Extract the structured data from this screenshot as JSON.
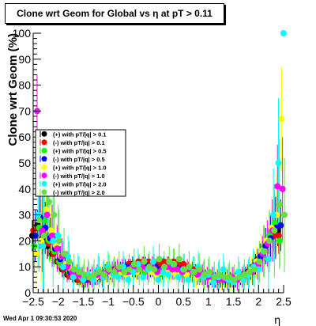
{
  "header": {
    "title": "Clone wrt Geom for Global vs   η at pT > 0.11"
  },
  "footer": {
    "timestamp": "Wed Apr  1 09:30:53 2020"
  },
  "chart_data": {
    "type": "scatter",
    "title": "Clone wrt Geom for Global vs   η at pT > 0.11",
    "xlabel": "η",
    "ylabel": "Clone wrt Geom (%)",
    "xlim": [
      -2.5,
      2.5
    ],
    "ylim": [
      0,
      100
    ],
    "x_ticks": [
      "−2.5",
      "−2",
      "−1.5",
      "−1",
      "−0.5",
      "0",
      "0.5",
      "1",
      "1.5",
      "2",
      "2.5"
    ],
    "y_ticks": [
      "0",
      "10",
      "20",
      "30",
      "40",
      "50",
      "60",
      "70",
      "80",
      "90",
      "100"
    ],
    "grid": false,
    "legend_position": "left-middle",
    "series": [
      {
        "name": "(+) with pT/|q| > 0.1",
        "color": "#000000",
        "x": [
          -2.45,
          -2.35,
          -2.25,
          -2.15,
          -2.05,
          -1.95,
          -1.85,
          -1.75,
          -1.65,
          -1.55,
          -1.45,
          -1.35,
          -1.25,
          -1.15,
          -1.05,
          -0.95,
          -0.85,
          -0.75,
          -0.65,
          -0.55,
          -0.45,
          -0.35,
          -0.25,
          -0.15,
          -0.05,
          0.05,
          0.15,
          0.25,
          0.35,
          0.45,
          0.55,
          0.65,
          0.75,
          0.85,
          0.95,
          1.05,
          1.15,
          1.25,
          1.35,
          1.45,
          1.55,
          1.65,
          1.75,
          1.85,
          1.95,
          2.05,
          2.15,
          2.25,
          2.35,
          2.45
        ],
        "y": [
          22,
          26,
          21,
          18,
          15,
          12,
          9,
          7,
          6,
          5,
          5,
          5,
          6,
          6,
          7,
          8,
          8,
          9,
          10,
          10,
          11,
          11,
          11,
          11,
          10,
          10,
          11,
          11,
          11,
          10,
          10,
          9,
          8,
          8,
          7,
          6,
          6,
          5,
          5,
          5,
          5,
          6,
          7,
          8,
          10,
          13,
          16,
          20,
          23,
          24
        ],
        "err": [
          6,
          6,
          6,
          5,
          4,
          3,
          3,
          2,
          2,
          2,
          2,
          2,
          2,
          2,
          2,
          2,
          2,
          2,
          2,
          2,
          2,
          2,
          2,
          2,
          2,
          2,
          2,
          2,
          2,
          2,
          2,
          2,
          2,
          2,
          2,
          2,
          2,
          2,
          2,
          2,
          2,
          2,
          2,
          2,
          3,
          3,
          4,
          5,
          6,
          6
        ]
      },
      {
        "name": "(-) with pT/|q| > 0.1",
        "color": "#ff0000",
        "x": [
          -2.45,
          -2.35,
          -2.25,
          -2.15,
          -2.05,
          -1.95,
          -1.85,
          -1.75,
          -1.65,
          -1.55,
          -1.45,
          -1.35,
          -1.25,
          -1.15,
          -1.05,
          -0.95,
          -0.85,
          -0.75,
          -0.65,
          -0.55,
          -0.45,
          -0.35,
          -0.25,
          -0.15,
          -0.05,
          0.05,
          0.15,
          0.25,
          0.35,
          0.45,
          0.55,
          0.65,
          0.75,
          0.85,
          0.95,
          1.05,
          1.15,
          1.25,
          1.35,
          1.45,
          1.55,
          1.65,
          1.75,
          1.85,
          1.95,
          2.05,
          2.15,
          2.25,
          2.35,
          2.45
        ],
        "y": [
          24,
          25,
          22,
          19,
          15,
          12,
          9,
          7,
          6,
          5,
          5,
          5,
          6,
          7,
          7,
          8,
          9,
          9,
          10,
          11,
          11,
          12,
          12,
          12,
          12,
          11,
          12,
          12,
          12,
          11,
          11,
          10,
          9,
          8,
          7,
          6,
          6,
          5,
          5,
          5,
          5,
          6,
          7,
          8,
          10,
          13,
          16,
          20,
          22,
          22
        ],
        "err": [
          7,
          6,
          6,
          5,
          4,
          3,
          3,
          2,
          2,
          2,
          2,
          2,
          2,
          2,
          2,
          2,
          2,
          2,
          2,
          2,
          2,
          2,
          2,
          2,
          2,
          2,
          2,
          2,
          2,
          2,
          2,
          2,
          2,
          2,
          2,
          2,
          2,
          2,
          2,
          2,
          2,
          2,
          2,
          2,
          3,
          3,
          4,
          5,
          6,
          7
        ]
      },
      {
        "name": "(+) with pT/|q| > 0.5",
        "color": "#00ff00",
        "x": [
          -2.45,
          -2.35,
          -2.25,
          -2.15,
          -2.05,
          -1.95,
          -1.85,
          -1.75,
          -1.65,
          -1.55,
          -1.45,
          -1.35,
          -1.25,
          -1.15,
          -1.05,
          -0.95,
          -0.85,
          -0.75,
          -0.65,
          -0.55,
          -0.45,
          -0.35,
          -0.25,
          -0.15,
          -0.05,
          0.05,
          0.15,
          0.25,
          0.35,
          0.45,
          0.55,
          0.65,
          0.75,
          0.85,
          0.95,
          1.05,
          1.15,
          1.25,
          1.35,
          1.45,
          1.55,
          1.65,
          1.75,
          1.85,
          1.95,
          2.05,
          2.15,
          2.25,
          2.35,
          2.45
        ],
        "y": [
          18,
          25,
          28,
          20,
          16,
          12,
          10,
          8,
          7,
          6,
          5,
          6,
          6,
          7,
          8,
          9,
          8,
          7,
          8,
          9,
          9,
          10,
          8,
          9,
          8,
          7,
          9,
          8,
          8,
          7,
          7,
          8,
          7,
          6,
          6,
          6,
          5,
          6,
          5,
          5,
          5,
          6,
          6,
          8,
          10,
          14,
          18,
          22,
          27,
          20
        ],
        "err": [
          10,
          12,
          10,
          8,
          6,
          5,
          4,
          3,
          3,
          3,
          3,
          3,
          3,
          3,
          3,
          3,
          3,
          3,
          3,
          3,
          3,
          3,
          3,
          3,
          3,
          3,
          3,
          3,
          3,
          3,
          3,
          3,
          3,
          3,
          3,
          3,
          3,
          3,
          3,
          3,
          3,
          3,
          3,
          3,
          4,
          5,
          7,
          9,
          12,
          10
        ]
      },
      {
        "name": "(-) with pT/|q| > 0.5",
        "color": "#0000ff",
        "x": [
          -2.45,
          -2.35,
          -2.25,
          -2.15,
          -2.05,
          -1.95,
          -1.85,
          -1.75,
          -1.65,
          -1.55,
          -1.45,
          -1.35,
          -1.25,
          -1.15,
          -1.05,
          -0.95,
          -0.85,
          -0.75,
          -0.65,
          -0.55,
          -0.45,
          -0.35,
          -0.25,
          -0.15,
          -0.05,
          0.05,
          0.15,
          0.25,
          0.35,
          0.45,
          0.55,
          0.65,
          0.75,
          0.85,
          0.95,
          1.05,
          1.15,
          1.25,
          1.35,
          1.45,
          1.55,
          1.65,
          1.75,
          1.85,
          1.95,
          2.05,
          2.15,
          2.25,
          2.35,
          2.45
        ],
        "y": [
          22,
          29,
          25,
          21,
          17,
          13,
          10,
          8,
          7,
          6,
          5,
          6,
          6,
          7,
          8,
          8,
          9,
          9,
          10,
          10,
          9,
          10,
          11,
          9,
          10,
          9,
          10,
          9,
          10,
          9,
          9,
          8,
          8,
          7,
          6,
          6,
          5,
          5,
          5,
          5,
          5,
          6,
          7,
          8,
          11,
          14,
          18,
          21,
          25,
          26
        ],
        "err": [
          10,
          12,
          10,
          8,
          6,
          5,
          4,
          3,
          3,
          3,
          3,
          3,
          3,
          3,
          3,
          3,
          3,
          3,
          3,
          3,
          3,
          3,
          3,
          3,
          3,
          3,
          3,
          3,
          3,
          3,
          3,
          3,
          3,
          3,
          3,
          3,
          3,
          3,
          3,
          3,
          3,
          3,
          3,
          3,
          4,
          5,
          7,
          9,
          12,
          10
        ]
      },
      {
        "name": "(+) with pT/|q| > 1.0",
        "color": "#ffff00",
        "x": [
          -2.45,
          -2.35,
          -2.25,
          -2.15,
          -2.05,
          -1.95,
          -1.85,
          -1.75,
          -1.65,
          -1.55,
          -1.45,
          -1.35,
          -1.25,
          -1.15,
          -1.05,
          -0.95,
          -0.85,
          -0.75,
          -0.65,
          -0.55,
          -0.45,
          -0.35,
          -0.25,
          -0.15,
          -0.05,
          0.05,
          0.15,
          0.25,
          0.35,
          0.45,
          0.55,
          0.65,
          0.75,
          0.85,
          0.95,
          1.05,
          1.15,
          1.25,
          1.35,
          1.45,
          1.55,
          1.65,
          1.75,
          1.85,
          1.95,
          2.05,
          2.15,
          2.25,
          2.35,
          2.45
        ],
        "y": [
          15,
          20,
          32,
          24,
          18,
          14,
          11,
          9,
          7,
          6,
          6,
          7,
          6,
          7,
          8,
          7,
          9,
          8,
          7,
          9,
          8,
          10,
          9,
          8,
          7,
          8,
          9,
          8,
          7,
          8,
          7,
          8,
          6,
          7,
          6,
          5,
          6,
          5,
          6,
          5,
          6,
          5,
          7,
          9,
          12,
          16,
          20,
          25,
          30,
          67
        ],
        "err": [
          14,
          16,
          14,
          12,
          9,
          7,
          6,
          4,
          4,
          4,
          4,
          4,
          4,
          4,
          4,
          4,
          4,
          4,
          4,
          4,
          4,
          4,
          4,
          4,
          4,
          4,
          4,
          4,
          4,
          4,
          4,
          4,
          4,
          4,
          4,
          4,
          4,
          4,
          4,
          4,
          4,
          4,
          4,
          5,
          6,
          7,
          9,
          12,
          16,
          20
        ]
      },
      {
        "name": "(-) with pT/|q| > 1.0",
        "color": "#ff00ff",
        "x": [
          -2.45,
          -2.35,
          -2.25,
          -2.15,
          -2.05,
          -1.95,
          -1.85,
          -1.75,
          -1.65,
          -1.55,
          -1.45,
          -1.35,
          -1.25,
          -1.15,
          -1.05,
          -0.95,
          -0.85,
          -0.75,
          -0.65,
          -0.55,
          -0.45,
          -0.35,
          -0.25,
          -0.15,
          -0.05,
          0.05,
          0.15,
          0.25,
          0.35,
          0.45,
          0.55,
          0.65,
          0.75,
          0.85,
          0.95,
          1.05,
          1.15,
          1.25,
          1.35,
          1.45,
          1.55,
          1.65,
          1.75,
          1.85,
          1.95,
          2.05,
          2.15,
          2.25,
          2.35,
          2.45
        ],
        "y": [
          70,
          24,
          30,
          22,
          17,
          14,
          10,
          8,
          7,
          6,
          6,
          6,
          7,
          6,
          8,
          8,
          9,
          9,
          8,
          10,
          9,
          10,
          9,
          10,
          8,
          9,
          10,
          9,
          9,
          8,
          9,
          8,
          7,
          7,
          6,
          6,
          5,
          5,
          5,
          6,
          5,
          6,
          7,
          8,
          11,
          15,
          19,
          24,
          41,
          40
        ],
        "err": [
          14,
          16,
          14,
          12,
          9,
          7,
          6,
          4,
          4,
          4,
          4,
          4,
          4,
          4,
          4,
          4,
          4,
          4,
          4,
          4,
          4,
          4,
          4,
          4,
          4,
          4,
          4,
          4,
          4,
          4,
          4,
          4,
          4,
          4,
          4,
          4,
          4,
          4,
          4,
          4,
          4,
          4,
          4,
          5,
          6,
          7,
          9,
          12,
          16,
          20
        ]
      },
      {
        "name": "(+) with pT/|q| > 2.0",
        "color": "#00ffff",
        "x": [
          -2.45,
          -2.35,
          -2.25,
          -2.15,
          -2.05,
          -1.95,
          -1.85,
          -1.75,
          -1.65,
          -1.55,
          -1.45,
          -1.35,
          -1.25,
          -1.15,
          -1.05,
          -0.95,
          -0.85,
          -0.75,
          -0.65,
          -0.55,
          -0.45,
          -0.35,
          -0.25,
          -0.15,
          -0.05,
          0.05,
          0.15,
          0.25,
          0.35,
          0.45,
          0.55,
          0.65,
          0.75,
          0.85,
          0.95,
          1.05,
          1.15,
          1.25,
          1.35,
          1.45,
          1.55,
          1.65,
          1.75,
          1.85,
          1.95,
          2.05,
          2.15,
          2.25,
          2.35,
          2.45
        ],
        "y": [
          30,
          18,
          40,
          20,
          22,
          10,
          14,
          6,
          9,
          5,
          7,
          5,
          9,
          6,
          10,
          7,
          6,
          10,
          5,
          8,
          11,
          6,
          9,
          12,
          5,
          8,
          7,
          11,
          6,
          9,
          5,
          8,
          10,
          6,
          7,
          4,
          6,
          9,
          5,
          4,
          8,
          5,
          7,
          10,
          9,
          16,
          13,
          30,
          50,
          100
        ],
        "err": [
          20,
          22,
          20,
          18,
          12,
          10,
          8,
          6,
          6,
          6,
          6,
          6,
          6,
          6,
          6,
          6,
          6,
          6,
          6,
          6,
          6,
          6,
          6,
          6,
          6,
          6,
          6,
          6,
          6,
          6,
          6,
          6,
          6,
          6,
          6,
          6,
          6,
          6,
          6,
          6,
          6,
          6,
          6,
          7,
          8,
          10,
          12,
          18,
          25,
          0
        ]
      },
      {
        "name": "(-) with pT/|q| > 2.0",
        "color": "#66dd44",
        "x": [
          -2.45,
          -2.35,
          -2.25,
          -2.15,
          -2.05,
          -1.95,
          -1.85,
          -1.75,
          -1.65,
          -1.55,
          -1.45,
          -1.35,
          -1.25,
          -1.15,
          -1.05,
          -0.95,
          -0.85,
          -0.75,
          -0.65,
          -0.55,
          -0.45,
          -0.35,
          -0.25,
          -0.15,
          -0.05,
          0.05,
          0.15,
          0.25,
          0.35,
          0.45,
          0.55,
          0.65,
          0.75,
          0.85,
          0.95,
          1.05,
          1.15,
          1.25,
          1.35,
          1.45,
          1.55,
          1.65,
          1.75,
          1.85,
          1.95,
          2.05,
          2.15,
          2.25,
          2.35,
          2.45
        ],
        "y": [
          28,
          22,
          35,
          30,
          20,
          15,
          12,
          9,
          8,
          7,
          6,
          7,
          8,
          7,
          9,
          8,
          10,
          8,
          9,
          11,
          9,
          12,
          10,
          9,
          13,
          10,
          12,
          11,
          13,
          9,
          10,
          8,
          9,
          7,
          8,
          6,
          7,
          6,
          6,
          5,
          6,
          7,
          8,
          9,
          12,
          16,
          20,
          24,
          34,
          30
        ],
        "err": [
          20,
          22,
          20,
          18,
          12,
          10,
          8,
          6,
          6,
          6,
          6,
          6,
          6,
          6,
          6,
          6,
          6,
          6,
          6,
          6,
          6,
          6,
          6,
          6,
          6,
          6,
          6,
          6,
          6,
          6,
          6,
          6,
          6,
          6,
          6,
          6,
          6,
          6,
          6,
          6,
          6,
          6,
          6,
          7,
          8,
          10,
          12,
          18,
          25,
          22
        ]
      }
    ]
  }
}
